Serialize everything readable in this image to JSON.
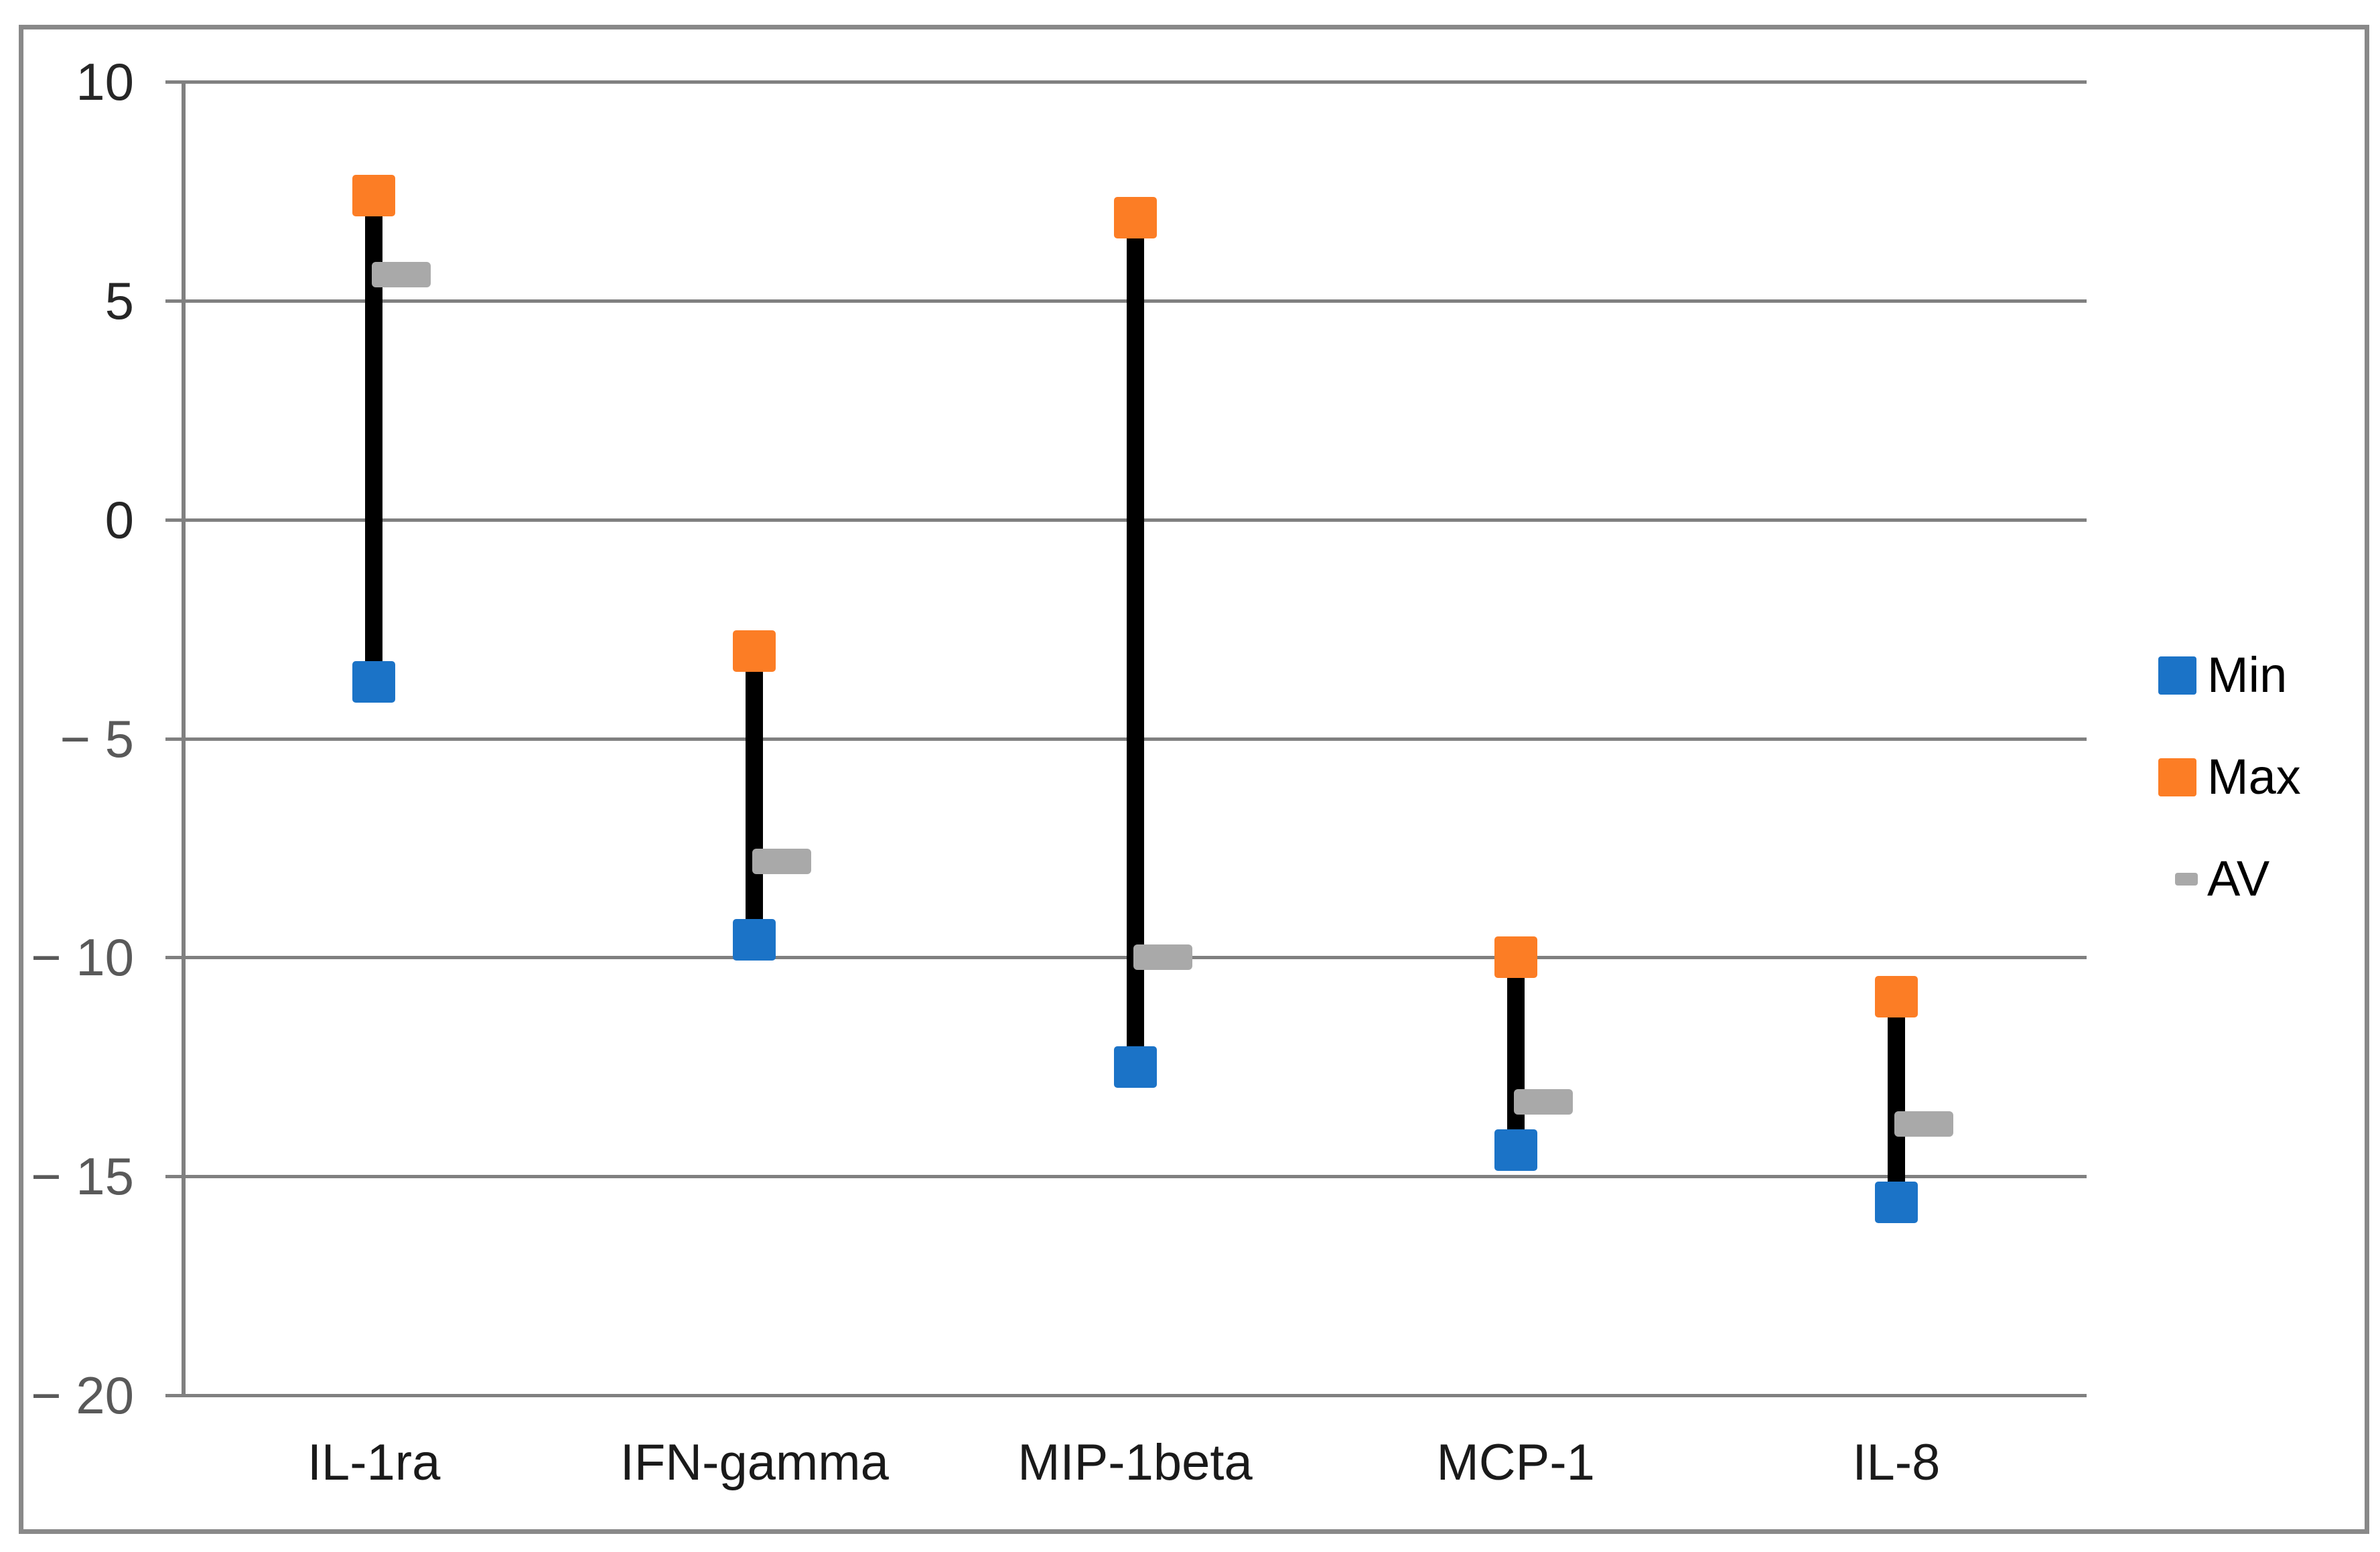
{
  "chart_data": {
    "type": "scatter",
    "variant": "min-max-average high-low range chart",
    "title": "",
    "xlabel": "",
    "ylabel": "",
    "categories": [
      "IL-1ra",
      "IFN-gamma",
      "MIP-1beta",
      "MCP-1",
      "IL-8"
    ],
    "series": [
      {
        "name": "Min",
        "marker": "square",
        "color": "#1B73C7",
        "values": [
          -3.7,
          -9.6,
          -12.5,
          -14.4,
          -15.6
        ]
      },
      {
        "name": "Max",
        "marker": "square",
        "color": "#FC7D25",
        "values": [
          7.4,
          -3.0,
          6.9,
          -10.0,
          -10.9
        ]
      },
      {
        "name": "AV",
        "marker": "dash",
        "color": "#A9A9A9",
        "values": [
          5.6,
          -7.8,
          -10.0,
          -13.3,
          -13.8
        ]
      }
    ],
    "range_line_color": "#000000",
    "ylim": [
      -20,
      10
    ],
    "yticks": [
      10,
      5,
      0,
      -5,
      -10,
      -15,
      -20
    ],
    "ytick_labels": [
      "10",
      "5",
      "0",
      "− 5",
      "− 10",
      "− 15",
      "− 20"
    ],
    "grid": true,
    "gridline_color": "#808080",
    "axis_line_color": "#808080",
    "frame_color": "#898989",
    "axis_text_color": "#262626",
    "negative_tick_text_color": "#595959",
    "legend_position": "right-middle"
  }
}
